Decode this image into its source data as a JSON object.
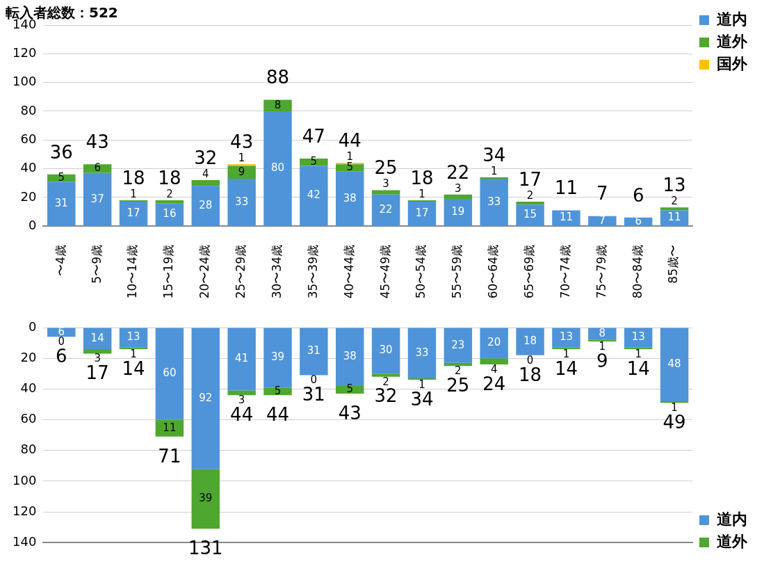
{
  "chart_data": [
    {
      "type": "bar",
      "title": "転入者総数：522",
      "stacked": true,
      "grid": "y",
      "legend": "top right",
      "tick_labels": "y",
      "categories": [
        null,
        null,
        null,
        null,
        null,
        null,
        null,
        null,
        null,
        null,
        null,
        null,
        null,
        null,
        null,
        null,
        null,
        null
      ],
      "ylim": [
        0,
        140
      ],
      "yticks": [
        0,
        20,
        40,
        60,
        80,
        100,
        120,
        140
      ],
      "series": [
        {
          "name": "道内",
          "color": "#4f94d9",
          "values": [
            31,
            37,
            17,
            16,
            28,
            33,
            80,
            42,
            38,
            22,
            17,
            19,
            33,
            15,
            11,
            7,
            6,
            11
          ],
          "value_labels": [
            "31",
            "37",
            "17",
            "16",
            "28",
            "33",
            "80",
            "42",
            "38",
            "22",
            "17",
            "19",
            "33",
            "15",
            "11",
            "7",
            "6",
            "11"
          ]
        },
        {
          "name": "道外",
          "color": "#4ea72e",
          "values": [
            5,
            6,
            1,
            2,
            4,
            9,
            8,
            5,
            5,
            3,
            1,
            3,
            1,
            2,
            0,
            0,
            0,
            2
          ],
          "value_labels": [
            "5",
            "6",
            "1",
            "2",
            "4",
            "9",
            "8",
            "5",
            "5",
            "3",
            "1",
            "3",
            "1",
            "2",
            null,
            null,
            null,
            "2"
          ]
        },
        {
          "name": "国外",
          "color": "#ffc000",
          "values": [
            0,
            0,
            0,
            0,
            0,
            1,
            0,
            0,
            1,
            0,
            0,
            0,
            0,
            0,
            0,
            0,
            0,
            0
          ],
          "value_labels": [
            null,
            null,
            null,
            null,
            null,
            "1",
            null,
            null,
            "1",
            null,
            null,
            null,
            null,
            null,
            null,
            null,
            null,
            null
          ]
        }
      ],
      "totals": [
        "36",
        "43",
        "18",
        "18",
        "32",
        "43",
        "88",
        "47",
        "44",
        "25",
        "18",
        "22",
        "34",
        "17",
        "11",
        "7",
        "6",
        "13"
      ]
    },
    {
      "type": "bar",
      "stacked": true,
      "grid": "y",
      "legend": "bottom right",
      "categories": [
        "〜4歳",
        "5〜9歳",
        "10〜14歳",
        "15〜19歳",
        "20〜24歳",
        "25〜29歳",
        "30〜34歳",
        "35〜39歳",
        "40〜44歳",
        "45〜49歳",
        "50〜54歳",
        "55〜59歳",
        "60〜64歳",
        "65〜69歳",
        "70〜74歳",
        "75〜79歳",
        "80〜84歳",
        "85歳〜"
      ],
      "ylim": [
        140,
        0
      ],
      "yticks": [
        0,
        20,
        40,
        60,
        80,
        100,
        120,
        140
      ],
      "series": [
        {
          "name": "道内",
          "color": "#4f94d9",
          "values": [
            6,
            14,
            13,
            60,
            92,
            41,
            39,
            31,
            38,
            30,
            33,
            23,
            20,
            18,
            13,
            8,
            13,
            48
          ],
          "value_labels": [
            "6",
            "14",
            "13",
            "60",
            "92",
            "41",
            "39",
            "31",
            "38",
            "30",
            "33",
            "23",
            "20",
            "18",
            "13",
            "8",
            "13",
            "48"
          ]
        },
        {
          "name": "道外",
          "color": "#4ea72e",
          "values": [
            0,
            3,
            1,
            11,
            39,
            3,
            5,
            0,
            5,
            2,
            1,
            2,
            4,
            0,
            1,
            1,
            1,
            1
          ],
          "value_labels": [
            "0",
            "3",
            "1",
            "11",
            "39",
            "3",
            "5",
            "0",
            "5",
            "2",
            "1",
            "2",
            "4",
            "0",
            "1",
            "1",
            "1",
            "1"
          ]
        }
      ],
      "totals": [
        "6",
        "17",
        "14",
        "71",
        "131",
        "44",
        "44",
        "31",
        "43",
        "32",
        "34",
        "25",
        "24",
        "18",
        "14",
        "9",
        "14",
        "49"
      ]
    }
  ]
}
